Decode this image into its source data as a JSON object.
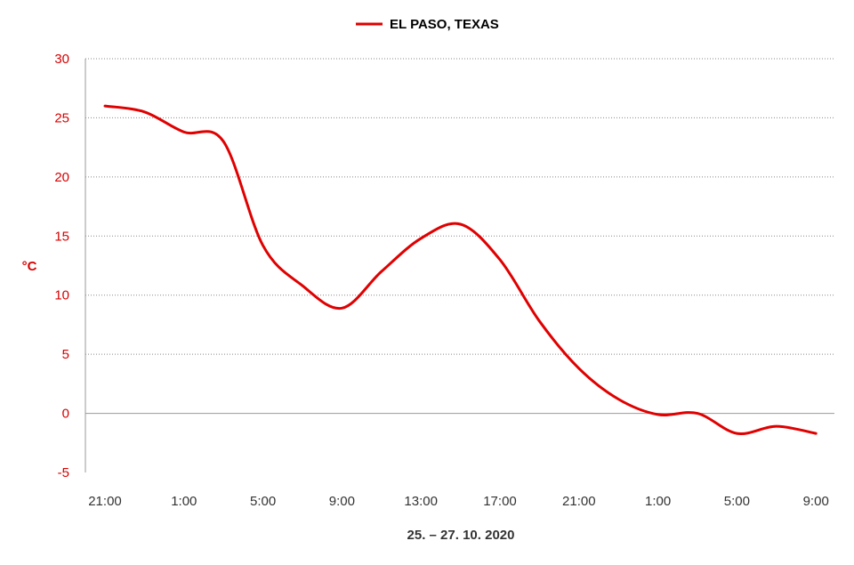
{
  "chart_data": {
    "type": "line",
    "title": "",
    "xlabel": "25. – 27. 10. 2020",
    "ylabel": "°C",
    "ylim": [
      -5,
      30
    ],
    "yticks": [
      "30",
      "25",
      "20",
      "15",
      "10",
      "5",
      "0",
      "-5"
    ],
    "ytick_values": [
      30,
      25,
      20,
      15,
      10,
      5,
      0,
      -5
    ],
    "xticks": [
      "21:00",
      "1:00",
      "5:00",
      "9:00",
      "13:00",
      "17:00",
      "21:00",
      "1:00",
      "5:00",
      "9:00"
    ],
    "xtick_positions": [
      0,
      4,
      8,
      12,
      16,
      20,
      24,
      28,
      32,
      36
    ],
    "grid": "horizontal-dotted",
    "legend_position": "top-center",
    "colors": {
      "series": "#e00000",
      "axis_text": "#d80000"
    },
    "series": [
      {
        "name": "EL PASO, TEXAS",
        "x": [
          0,
          2,
          4,
          6,
          8,
          10,
          12,
          14,
          16,
          18,
          20,
          22,
          24,
          26,
          28,
          30,
          32,
          34,
          36
        ],
        "values": [
          26,
          25.5,
          23.8,
          23,
          14.2,
          10.8,
          8.9,
          12,
          14.8,
          16,
          13,
          7.8,
          3.8,
          1.2,
          -0.1,
          0,
          -1.7,
          -1.1,
          -1.7
        ]
      }
    ]
  }
}
